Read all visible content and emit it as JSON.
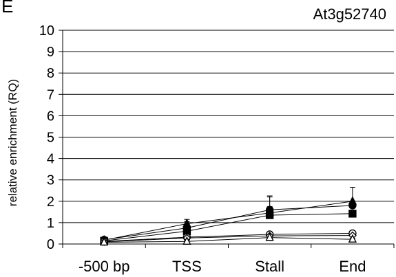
{
  "panel_letter": "E",
  "chart_data": {
    "type": "line",
    "title": "At3g52740",
    "xlabel": "",
    "ylabel": "relative  enrichment (RQ)",
    "categories": [
      "-500 bp",
      "TSS",
      "Stall",
      "End"
    ],
    "ylim": [
      0,
      10
    ],
    "yticks": [
      0,
      1,
      2,
      3,
      4,
      5,
      6,
      7,
      8,
      9,
      10
    ],
    "grid": true,
    "legend": "none",
    "series": [
      {
        "marker": "filled-triangle",
        "values": [
          0.18,
          0.95,
          1.45,
          2.0
        ],
        "err": [
          0.05,
          0.2,
          0.8,
          0.65
        ]
      },
      {
        "marker": "filled-circle",
        "values": [
          0.2,
          0.75,
          1.6,
          1.8
        ],
        "err": [
          0.05,
          0.3,
          0.6,
          0.2
        ]
      },
      {
        "marker": "filled-square",
        "values": [
          0.15,
          0.6,
          1.35,
          1.42
        ],
        "err": [
          0.05,
          0.15,
          0.4,
          0.1
        ]
      },
      {
        "marker": "open-circle",
        "values": [
          0.12,
          0.32,
          0.45,
          0.5
        ],
        "err": [
          0.04,
          0.06,
          0.05,
          0.05
        ]
      },
      {
        "marker": "open-diamond",
        "values": [
          0.1,
          0.28,
          0.38,
          0.4
        ],
        "err": [
          0.03,
          0.05,
          0.05,
          0.05
        ]
      },
      {
        "marker": "open-triangle",
        "values": [
          0.08,
          0.12,
          0.3,
          0.22
        ],
        "err": [
          0.03,
          0.04,
          0.05,
          0.05
        ]
      }
    ]
  }
}
